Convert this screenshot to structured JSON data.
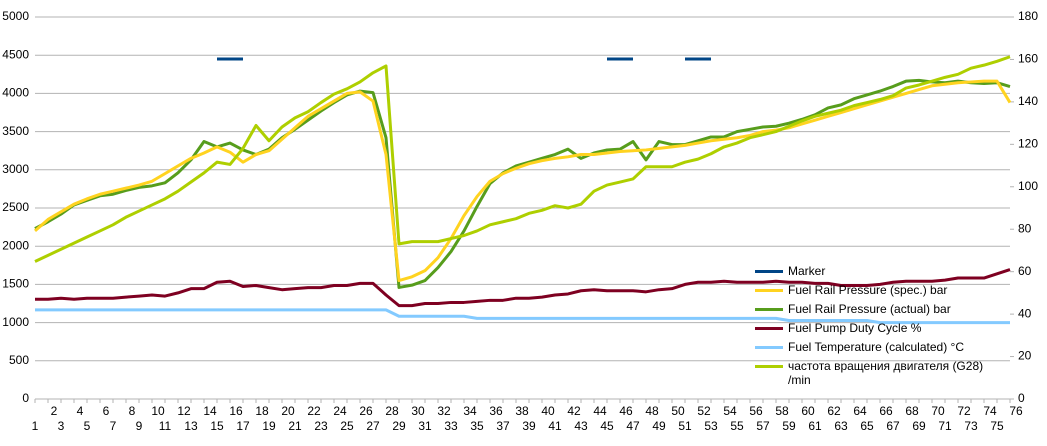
{
  "chart_data": {
    "type": "line",
    "categories": [
      1,
      2,
      3,
      4,
      5,
      6,
      7,
      8,
      9,
      10,
      11,
      12,
      13,
      14,
      15,
      16,
      17,
      18,
      19,
      20,
      21,
      22,
      23,
      24,
      25,
      26,
      27,
      28,
      29,
      30,
      31,
      32,
      33,
      34,
      35,
      36,
      37,
      38,
      39,
      40,
      41,
      42,
      43,
      44,
      45,
      46,
      47,
      48,
      49,
      50,
      51,
      52,
      53,
      54,
      55,
      56,
      57,
      58,
      59,
      60,
      61,
      62,
      63,
      64,
      65,
      66,
      67,
      68,
      69,
      70,
      71,
      72,
      73,
      74,
      75,
      76
    ],
    "ylim": [
      0,
      5000
    ],
    "yticks": [
      0,
      500,
      1000,
      1500,
      2000,
      2500,
      3000,
      3500,
      4000,
      4500,
      5000
    ],
    "y2lim": [
      0,
      180
    ],
    "y2ticks": [
      0,
      20,
      40,
      60,
      80,
      100,
      120,
      140,
      160,
      180
    ],
    "grid": true,
    "series": [
      {
        "name": "Marker",
        "color": "#004586",
        "values": [
          null,
          null,
          null,
          null,
          null,
          null,
          null,
          null,
          null,
          null,
          null,
          null,
          null,
          null,
          4450,
          4450,
          4450,
          null,
          null,
          null,
          null,
          null,
          null,
          null,
          null,
          null,
          null,
          null,
          null,
          null,
          null,
          null,
          null,
          null,
          null,
          null,
          null,
          null,
          null,
          null,
          null,
          null,
          null,
          null,
          4450,
          4450,
          4450,
          null,
          null,
          null,
          4450,
          4450,
          4450,
          null,
          null,
          null,
          null,
          null,
          null,
          null,
          null,
          null,
          null,
          null,
          null,
          null,
          null,
          null,
          null,
          null,
          null,
          null,
          null,
          null,
          null,
          null
        ]
      },
      {
        "name": "Fuel Rail Pressure (spec.)  bar",
        "color": "#ffd320",
        "values": [
          2200,
          2350,
          2450,
          2550,
          2620,
          2680,
          2720,
          2760,
          2800,
          2850,
          2950,
          3050,
          3150,
          3220,
          3300,
          3230,
          3100,
          3200,
          3250,
          3400,
          3550,
          3700,
          3800,
          3900,
          4000,
          4020,
          3900,
          3200,
          1550,
          1600,
          1680,
          1850,
          2100,
          2400,
          2650,
          2850,
          2950,
          3020,
          3080,
          3120,
          3150,
          3170,
          3200,
          3200,
          3220,
          3240,
          3250,
          3260,
          3280,
          3300,
          3320,
          3350,
          3380,
          3400,
          3420,
          3450,
          3500,
          3520,
          3550,
          3600,
          3650,
          3700,
          3750,
          3800,
          3850,
          3900,
          3950,
          4000,
          4050,
          4100,
          4120,
          4140,
          4150,
          4160,
          4160,
          3880
        ]
      },
      {
        "name": "Fuel Rail Pressure (actual)  bar",
        "color": "#579d1c",
        "values": [
          2230,
          2320,
          2420,
          2540,
          2600,
          2660,
          2680,
          2730,
          2770,
          2790,
          2830,
          2960,
          3130,
          3370,
          3300,
          3350,
          3260,
          3200,
          3270,
          3420,
          3530,
          3650,
          3770,
          3880,
          3980,
          4030,
          4010,
          3420,
          1460,
          1490,
          1550,
          1720,
          1930,
          2200,
          2520,
          2820,
          2960,
          3050,
          3100,
          3150,
          3200,
          3270,
          3150,
          3220,
          3260,
          3270,
          3370,
          3130,
          3370,
          3330,
          3330,
          3380,
          3430,
          3430,
          3500,
          3530,
          3560,
          3570,
          3610,
          3660,
          3720,
          3810,
          3850,
          3930,
          3980,
          4030,
          4090,
          4160,
          4170,
          4150,
          4140,
          4160,
          4140,
          4130,
          4140,
          4090
        ]
      },
      {
        "name": "Fuel Pump Duty Cycle  %",
        "color": "#7e0021",
        "axis": "y2",
        "values": [
          47,
          47,
          47.5,
          47,
          47.5,
          47.5,
          47.5,
          48,
          48.5,
          49,
          48.5,
          50,
          52,
          52,
          55,
          55.5,
          53,
          53.5,
          52.5,
          51.5,
          52,
          52.5,
          52.5,
          53.5,
          53.5,
          54.5,
          54.5,
          49,
          44,
          44,
          45,
          45,
          45.5,
          45.5,
          46,
          46.5,
          46.5,
          47.5,
          47.5,
          48,
          49,
          49.5,
          51,
          51.5,
          51,
          51,
          51,
          50.5,
          51.5,
          52,
          54,
          55,
          55,
          55.5,
          55,
          55,
          55,
          55.5,
          55,
          55,
          54.5,
          54.5,
          53.5,
          53.5,
          53.5,
          54,
          55,
          55.5,
          55.5,
          55.5,
          56,
          57,
          57,
          57,
          59,
          61
        ]
      },
      {
        "name": "Fuel Temperature (calculated) °C",
        "color": "#83caff",
        "axis": "y2",
        "values": [
          42,
          42,
          42,
          42,
          42,
          42,
          42,
          42,
          42,
          42,
          42,
          42,
          42,
          42,
          42,
          42,
          42,
          42,
          42,
          42,
          42,
          42,
          42,
          42,
          42,
          42,
          42,
          42,
          39,
          39,
          39,
          39,
          39,
          39,
          38,
          38,
          38,
          38,
          38,
          38,
          38,
          38,
          38,
          38,
          38,
          38,
          38,
          38,
          38,
          38,
          38,
          38,
          38,
          38,
          38,
          38,
          38,
          38,
          37,
          37,
          37,
          37,
          37,
          37,
          37,
          36,
          36,
          36,
          36,
          36,
          36,
          36,
          36,
          36,
          36,
          36
        ]
      },
      {
        "name": "частота вращения двигателя (G28) /min",
        "color": "#aecf00",
        "values": [
          1800,
          1880,
          1960,
          2040,
          2120,
          2200,
          2280,
          2380,
          2460,
          2540,
          2620,
          2720,
          2840,
          2960,
          3100,
          3070,
          3280,
          3580,
          3380,
          3560,
          3680,
          3760,
          3880,
          3990,
          4060,
          4150,
          4270,
          4360,
          2030,
          2060,
          2060,
          2060,
          2100,
          2140,
          2200,
          2280,
          2320,
          2360,
          2430,
          2470,
          2530,
          2500,
          2550,
          2720,
          2800,
          2840,
          2880,
          3040,
          3040,
          3040,
          3100,
          3140,
          3210,
          3300,
          3350,
          3420,
          3460,
          3500,
          3570,
          3640,
          3700,
          3740,
          3780,
          3840,
          3880,
          3920,
          3970,
          4070,
          4110,
          4160,
          4210,
          4250,
          4330,
          4370,
          4420,
          4480
        ]
      }
    ]
  }
}
